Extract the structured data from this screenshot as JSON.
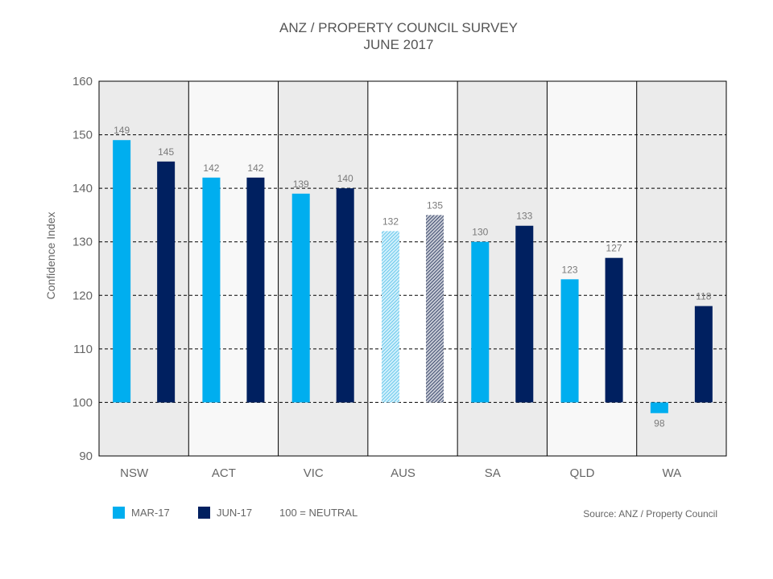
{
  "chart_data": {
    "type": "bar",
    "title": "ANZ / PROPERTY COUNCIL SURVEY",
    "subtitle": "JUNE 2017",
    "ylabel": "Confidence Index",
    "xlabel": "",
    "ylim": [
      90,
      160
    ],
    "yticks": [
      90,
      100,
      110,
      120,
      130,
      140,
      150,
      160
    ],
    "baseline": 100,
    "categories": [
      "NSW",
      "ACT",
      "VIC",
      "AUS",
      "SA",
      "QLD",
      "WA"
    ],
    "series": [
      {
        "name": "MAR-17",
        "color": "#00aeef",
        "values": [
          149,
          142,
          139,
          132,
          130,
          123,
          98
        ]
      },
      {
        "name": "JUN-17",
        "color": "#002060",
        "values": [
          145,
          142,
          140,
          135,
          133,
          127,
          118
        ]
      }
    ],
    "data_labels": [
      [
        "149",
        "142",
        "139",
        "132",
        "130",
        "123",
        "98"
      ],
      [
        "145",
        "142",
        "140",
        "135",
        "133",
        "127",
        "118"
      ]
    ],
    "highlight_category": "AUS",
    "grid": true,
    "legend_position": "bottom-left",
    "neutral_note": "100 = NEUTRAL",
    "source": "Source: ANZ / Property Council",
    "colors": {
      "panel_shaded": "#ebebeb",
      "panel_light": "#f8f8f8",
      "panel_aus": "#ffffff"
    }
  }
}
